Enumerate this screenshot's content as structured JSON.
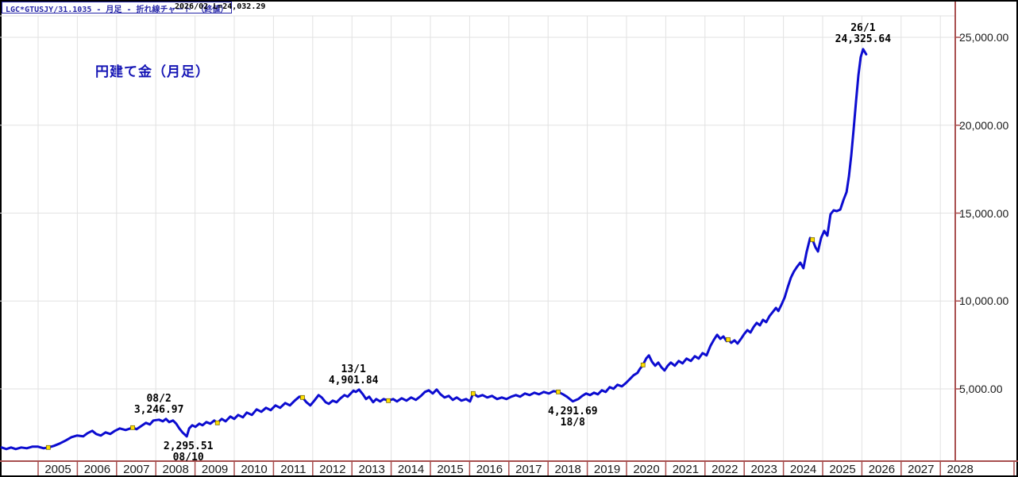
{
  "window": {
    "header": {
      "symbol_label": "LGC*GTUSJY/31.1035 - 月足 - 折れ線チャート （終値）",
      "period_label": "2026/02",
      "last_label": "L=24,032.29"
    },
    "title": "円建て金（月足）"
  },
  "colors": {
    "line": "#0c0cd0",
    "grid": "#e2e2e2",
    "axis": "#a84f4f",
    "marker_fill": "#ffdf00",
    "marker_stroke": "#7a6a00",
    "title_text": "#1515b5",
    "header_text": "#2626a8",
    "label_text": "#1a1a1a"
  },
  "chart_data": {
    "type": "line",
    "title": "円建て金（月足）",
    "grid": true,
    "legend": "none",
    "x_axis": {
      "years": [
        "2005",
        "2006",
        "2007",
        "2008",
        "2009",
        "2010",
        "2011",
        "2012",
        "2013",
        "2014",
        "2015",
        "2016",
        "2017",
        "2018",
        "2019",
        "2020",
        "2021",
        "2022",
        "2023",
        "2024",
        "2025",
        "2026",
        "2027",
        "2028"
      ]
    },
    "y_axis": {
      "side": "right",
      "range": [
        0,
        26000
      ],
      "ticks": [
        {
          "label": "25,000.00",
          "value": 25000
        },
        {
          "label": "20,000.00",
          "value": 20000
        },
        {
          "label": "15,000.00",
          "value": 15000
        },
        {
          "label": "10,000.00",
          "value": 10000
        },
        {
          "label": "5,000.00",
          "value": 5000
        }
      ]
    },
    "series": [
      {
        "name": "円建て金（月足） 終値",
        "color": "#0c0cd0",
        "points": [
          [
            2004.07,
            1668
          ],
          [
            2004.19,
            1578
          ],
          [
            2004.31,
            1668
          ],
          [
            2004.43,
            1578
          ],
          [
            2004.57,
            1668
          ],
          [
            2004.71,
            1623
          ],
          [
            2004.85,
            1713
          ],
          [
            2005.0,
            1713
          ],
          [
            2005.14,
            1623
          ],
          [
            2005.26,
            1668
          ],
          [
            2005.4,
            1758
          ],
          [
            2005.55,
            1894
          ],
          [
            2005.71,
            2074
          ],
          [
            2005.85,
            2255
          ],
          [
            2005.99,
            2345
          ],
          [
            2006.15,
            2300
          ],
          [
            2006.26,
            2481
          ],
          [
            2006.38,
            2616
          ],
          [
            2006.48,
            2436
          ],
          [
            2006.6,
            2345
          ],
          [
            2006.72,
            2526
          ],
          [
            2006.84,
            2435
          ],
          [
            2006.96,
            2616
          ],
          [
            2007.08,
            2751
          ],
          [
            2007.23,
            2661
          ],
          [
            2007.41,
            2796
          ],
          [
            2007.51,
            2706
          ],
          [
            2007.63,
            2887
          ],
          [
            2007.75,
            3067
          ],
          [
            2007.85,
            2977
          ],
          [
            2007.94,
            3202
          ],
          [
            2008.08,
            3246.97
          ],
          [
            2008.18,
            3158
          ],
          [
            2008.26,
            3293
          ],
          [
            2008.34,
            3113
          ],
          [
            2008.44,
            3203
          ],
          [
            2008.52,
            3022
          ],
          [
            2008.6,
            2751
          ],
          [
            2008.68,
            2526
          ],
          [
            2008.79,
            2295.51
          ],
          [
            2008.85,
            2752
          ],
          [
            2008.93,
            2932
          ],
          [
            2009.01,
            2842
          ],
          [
            2009.11,
            3023
          ],
          [
            2009.19,
            2932
          ],
          [
            2009.29,
            3113
          ],
          [
            2009.39,
            3023
          ],
          [
            2009.49,
            3203
          ],
          [
            2009.57,
            3068
          ],
          [
            2009.68,
            3293
          ],
          [
            2009.78,
            3158
          ],
          [
            2009.9,
            3429
          ],
          [
            2010.0,
            3293
          ],
          [
            2010.1,
            3519
          ],
          [
            2010.22,
            3384
          ],
          [
            2010.32,
            3654
          ],
          [
            2010.45,
            3519
          ],
          [
            2010.57,
            3835
          ],
          [
            2010.69,
            3699
          ],
          [
            2010.81,
            3925
          ],
          [
            2010.93,
            3790
          ],
          [
            2011.05,
            4061
          ],
          [
            2011.17,
            3925
          ],
          [
            2011.3,
            4196
          ],
          [
            2011.42,
            4061
          ],
          [
            2011.54,
            4331
          ],
          [
            2011.66,
            4557
          ],
          [
            2011.74,
            4512
          ],
          [
            2011.84,
            4241
          ],
          [
            2011.94,
            4061
          ],
          [
            2012.04,
            4331
          ],
          [
            2012.15,
            4647
          ],
          [
            2012.23,
            4512
          ],
          [
            2012.33,
            4241
          ],
          [
            2012.41,
            4151
          ],
          [
            2012.51,
            4331
          ],
          [
            2012.61,
            4241
          ],
          [
            2012.71,
            4467
          ],
          [
            2012.81,
            4647
          ],
          [
            2012.89,
            4557
          ],
          [
            2013.04,
            4901.84
          ],
          [
            2013.1,
            4828
          ],
          [
            2013.18,
            4963
          ],
          [
            2013.28,
            4692
          ],
          [
            2013.36,
            4422
          ],
          [
            2013.44,
            4557
          ],
          [
            2013.54,
            4241
          ],
          [
            2013.62,
            4422
          ],
          [
            2013.72,
            4286
          ],
          [
            2013.81,
            4422
          ],
          [
            2013.93,
            4332
          ],
          [
            2014.05,
            4422
          ],
          [
            2014.15,
            4286
          ],
          [
            2014.27,
            4467
          ],
          [
            2014.39,
            4332
          ],
          [
            2014.51,
            4512
          ],
          [
            2014.63,
            4376
          ],
          [
            2014.76,
            4602
          ],
          [
            2014.86,
            4828
          ],
          [
            2014.96,
            4918
          ],
          [
            2015.06,
            4737
          ],
          [
            2015.16,
            4963
          ],
          [
            2015.26,
            4692
          ],
          [
            2015.36,
            4512
          ],
          [
            2015.47,
            4602
          ],
          [
            2015.57,
            4376
          ],
          [
            2015.67,
            4512
          ],
          [
            2015.79,
            4332
          ],
          [
            2015.91,
            4422
          ],
          [
            2016.01,
            4286
          ],
          [
            2016.09,
            4738
          ],
          [
            2016.21,
            4557
          ],
          [
            2016.33,
            4647
          ],
          [
            2016.45,
            4512
          ],
          [
            2016.57,
            4602
          ],
          [
            2016.7,
            4422
          ],
          [
            2016.82,
            4512
          ],
          [
            2016.94,
            4422
          ],
          [
            2017.06,
            4557
          ],
          [
            2017.18,
            4647
          ],
          [
            2017.29,
            4557
          ],
          [
            2017.41,
            4738
          ],
          [
            2017.53,
            4647
          ],
          [
            2017.65,
            4783
          ],
          [
            2017.77,
            4692
          ],
          [
            2017.89,
            4828
          ],
          [
            2018.02,
            4738
          ],
          [
            2018.14,
            4873
          ],
          [
            2018.26,
            4828
          ],
          [
            2018.38,
            4692
          ],
          [
            2018.48,
            4557
          ],
          [
            2018.63,
            4291.69
          ],
          [
            2018.77,
            4422
          ],
          [
            2018.87,
            4602
          ],
          [
            2018.97,
            4738
          ],
          [
            2019.07,
            4647
          ],
          [
            2019.17,
            4783
          ],
          [
            2019.27,
            4692
          ],
          [
            2019.37,
            4918
          ],
          [
            2019.47,
            4828
          ],
          [
            2019.57,
            5099
          ],
          [
            2019.67,
            5008
          ],
          [
            2019.77,
            5234
          ],
          [
            2019.88,
            5143
          ],
          [
            2019.98,
            5324
          ],
          [
            2020.08,
            5549
          ],
          [
            2020.18,
            5775
          ],
          [
            2020.28,
            5910
          ],
          [
            2020.34,
            6136
          ],
          [
            2020.42,
            6362
          ],
          [
            2020.5,
            6723
          ],
          [
            2020.57,
            6903
          ],
          [
            2020.65,
            6542
          ],
          [
            2020.73,
            6317
          ],
          [
            2020.81,
            6497
          ],
          [
            2020.89,
            6226
          ],
          [
            2020.97,
            6046
          ],
          [
            2021.05,
            6317
          ],
          [
            2021.13,
            6497
          ],
          [
            2021.23,
            6317
          ],
          [
            2021.33,
            6587
          ],
          [
            2021.43,
            6452
          ],
          [
            2021.53,
            6723
          ],
          [
            2021.64,
            6587
          ],
          [
            2021.74,
            6858
          ],
          [
            2021.84,
            6723
          ],
          [
            2021.94,
            7038
          ],
          [
            2022.04,
            6903
          ],
          [
            2022.14,
            7445
          ],
          [
            2022.23,
            7806
          ],
          [
            2022.31,
            8077
          ],
          [
            2022.39,
            7851
          ],
          [
            2022.47,
            7986
          ],
          [
            2022.55,
            7716
          ],
          [
            2022.59,
            7806
          ],
          [
            2022.67,
            7625
          ],
          [
            2022.75,
            7761
          ],
          [
            2022.83,
            7580
          ],
          [
            2022.92,
            7851
          ],
          [
            2023.0,
            8122
          ],
          [
            2023.08,
            8347
          ],
          [
            2023.16,
            8212
          ],
          [
            2023.24,
            8528
          ],
          [
            2023.32,
            8754
          ],
          [
            2023.4,
            8618
          ],
          [
            2023.48,
            8934
          ],
          [
            2023.56,
            8799
          ],
          [
            2023.65,
            9160
          ],
          [
            2023.73,
            9385
          ],
          [
            2023.81,
            9611
          ],
          [
            2023.87,
            9430
          ],
          [
            2023.95,
            9791
          ],
          [
            2024.03,
            10197
          ],
          [
            2024.11,
            10784
          ],
          [
            2024.19,
            11325
          ],
          [
            2024.27,
            11686
          ],
          [
            2024.35,
            11957
          ],
          [
            2024.43,
            12183
          ],
          [
            2024.51,
            11867
          ],
          [
            2024.59,
            12769
          ],
          [
            2024.68,
            13581
          ],
          [
            2024.74,
            13491
          ],
          [
            2024.82,
            13040
          ],
          [
            2024.88,
            12814
          ],
          [
            2024.96,
            13581
          ],
          [
            2025.04,
            13987
          ],
          [
            2025.12,
            13716
          ],
          [
            2025.2,
            14934
          ],
          [
            2025.28,
            15160
          ],
          [
            2025.36,
            15115
          ],
          [
            2025.45,
            15205
          ],
          [
            2025.53,
            15747
          ],
          [
            2025.61,
            16198
          ],
          [
            2025.67,
            17100
          ],
          [
            2025.73,
            18319
          ],
          [
            2025.79,
            19763
          ],
          [
            2025.85,
            21342
          ],
          [
            2025.91,
            22831
          ],
          [
            2025.97,
            23869
          ],
          [
            2026.03,
            24325.64
          ],
          [
            2026.11,
            24032.29
          ]
        ]
      }
    ],
    "markers": {
      "shape": "square",
      "points": [
        [
          2005.26,
          1668
        ],
        [
          2007.41,
          2796
        ],
        [
          2009.57,
          3068
        ],
        [
          2011.74,
          4512
        ],
        [
          2013.93,
          4332
        ],
        [
          2016.09,
          4738
        ],
        [
          2018.26,
          4828
        ],
        [
          2020.42,
          6362
        ],
        [
          2022.59,
          7806
        ],
        [
          2024.74,
          13491
        ]
      ]
    },
    "annotations": [
      {
        "lines": [
          "08/2",
          "3,246.97"
        ],
        "year": 2008.08,
        "value": 3246.97,
        "placement": "above"
      },
      {
        "lines": [
          "2,295.51",
          "08/10"
        ],
        "year": 2008.83,
        "value": 2295.51,
        "placement": "below"
      },
      {
        "lines": [
          "13/1",
          "4,901.84"
        ],
        "year": 2013.04,
        "value": 4901.84,
        "placement": "above"
      },
      {
        "lines": [
          "4,291.69",
          "18/8"
        ],
        "year": 2018.63,
        "value": 4291.69,
        "placement": "below"
      },
      {
        "lines": [
          "26/1",
          "24,325.64"
        ],
        "year": 2026.03,
        "value": 24325.64,
        "placement": "above"
      }
    ]
  }
}
